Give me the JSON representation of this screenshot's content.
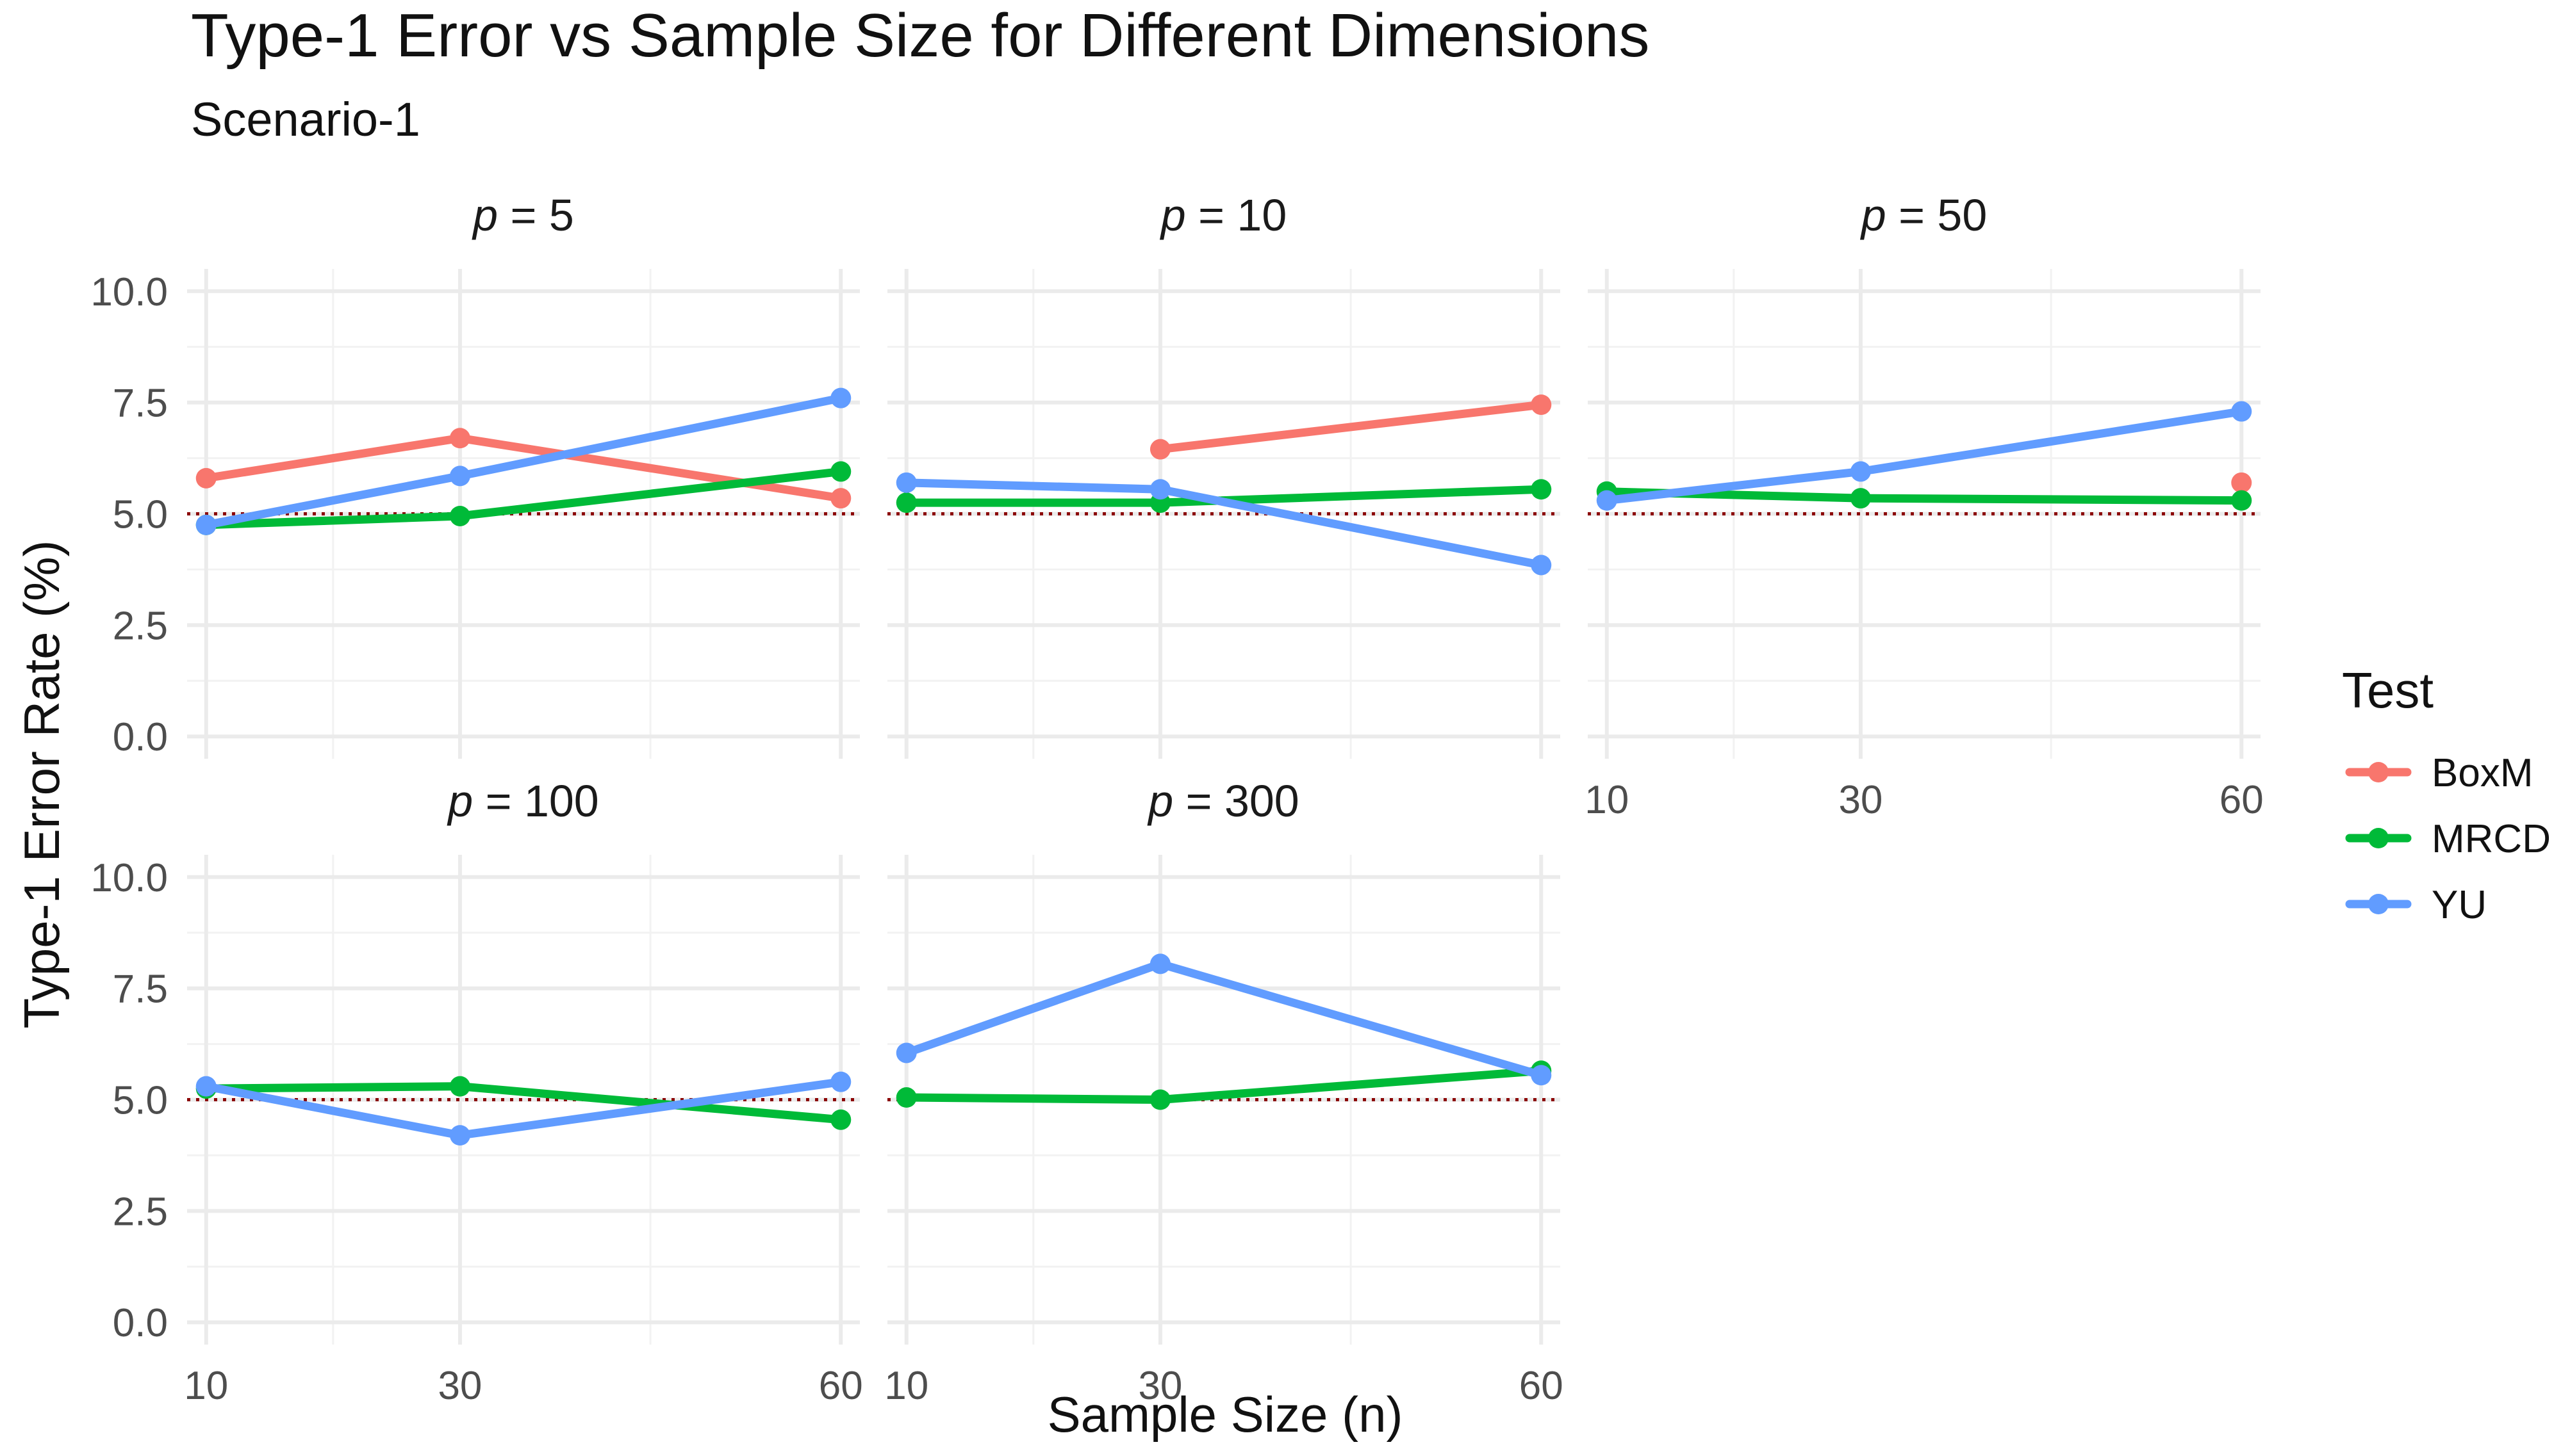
{
  "chart_data": {
    "type": "line",
    "title": "Type-1 Error vs Sample Size for Different Dimensions",
    "subtitle": "Scenario-1",
    "xlabel": "Sample Size (n)",
    "ylabel": "Type-1 Error Rate (%)",
    "x_ticks": [
      10,
      30,
      60
    ],
    "x_tick_labels": [
      "10",
      "30",
      "60"
    ],
    "xlim": [
      8.5,
      61.5
    ],
    "ylim": [
      -0.5,
      10.5
    ],
    "y_ticks": [
      0,
      2.5,
      5,
      7.5,
      10
    ],
    "y_tick_labels": [
      "0.0",
      "2.5",
      "5.0",
      "7.5",
      "10.0"
    ],
    "reference_line": {
      "y": 5,
      "style": "dotted",
      "color": "#8B0000"
    },
    "legend": {
      "title": "Test",
      "position": "right",
      "entries": [
        {
          "name": "BoxM",
          "color": "#F8766D"
        },
        {
          "name": "MRCD",
          "color": "#00BA38"
        },
        {
          "name": "YU",
          "color": "#619CFF"
        }
      ]
    },
    "panel_var": "p",
    "panels": [
      {
        "label": "p = 5",
        "var": "p",
        "value": "5",
        "series": [
          {
            "name": "BoxM",
            "x": [
              10,
              30,
              60
            ],
            "y": [
              5.8,
              6.7,
              5.35
            ]
          },
          {
            "name": "MRCD",
            "x": [
              10,
              30,
              60
            ],
            "y": [
              4.75,
              4.95,
              5.95
            ]
          },
          {
            "name": "YU",
            "x": [
              10,
              30,
              60
            ],
            "y": [
              4.75,
              5.85,
              7.6
            ]
          }
        ]
      },
      {
        "label": "p = 10",
        "var": "p",
        "value": "10",
        "series": [
          {
            "name": "BoxM",
            "x": [
              30,
              60
            ],
            "y": [
              6.45,
              7.45
            ]
          },
          {
            "name": "MRCD",
            "x": [
              10,
              30,
              60
            ],
            "y": [
              5.25,
              5.25,
              5.55
            ]
          },
          {
            "name": "YU",
            "x": [
              10,
              30,
              60
            ],
            "y": [
              5.7,
              5.55,
              3.85
            ]
          }
        ]
      },
      {
        "label": "p = 50",
        "var": "p",
        "value": "50",
        "series": [
          {
            "name": "BoxM",
            "x": [
              60
            ],
            "y": [
              5.7
            ]
          },
          {
            "name": "MRCD",
            "x": [
              10,
              30,
              60
            ],
            "y": [
              5.5,
              5.35,
              5.3
            ]
          },
          {
            "name": "YU",
            "x": [
              10,
              30,
              60
            ],
            "y": [
              5.3,
              5.95,
              7.3
            ]
          }
        ]
      },
      {
        "label": "p = 100",
        "var": "p",
        "value": "100",
        "series": [
          {
            "name": "MRCD",
            "x": [
              10,
              30,
              60
            ],
            "y": [
              5.25,
              5.3,
              4.55
            ]
          },
          {
            "name": "YU",
            "x": [
              10,
              30,
              60
            ],
            "y": [
              5.3,
              4.2,
              5.4
            ]
          }
        ]
      },
      {
        "label": "p = 300",
        "var": "p",
        "value": "300",
        "series": [
          {
            "name": "MRCD",
            "x": [
              10,
              30,
              60
            ],
            "y": [
              5.05,
              5.0,
              5.65
            ]
          },
          {
            "name": "YU",
            "x": [
              10,
              30,
              60
            ],
            "y": [
              6.05,
              8.05,
              5.55
            ]
          }
        ]
      }
    ]
  }
}
